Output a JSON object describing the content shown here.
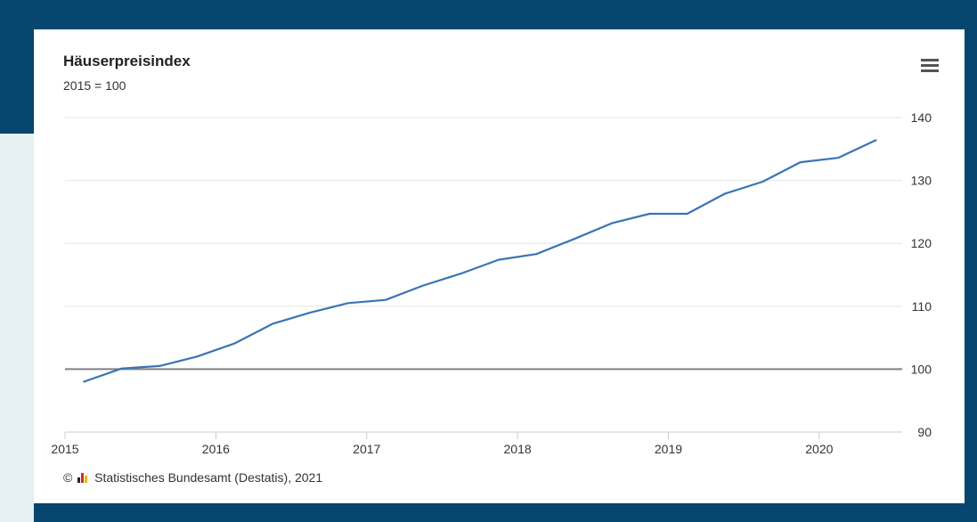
{
  "header": {
    "title": "Häuserpreisindex",
    "subtitle": "2015 = 100"
  },
  "menu": {
    "icon": "hamburger-menu-icon"
  },
  "credits": {
    "copyright_symbol": "©",
    "logo_icon": "destatis-logo-icon",
    "text": "Statistisches Bundesamt (Destatis), 2021"
  },
  "colors": {
    "frame": "#07466f",
    "series_line": "#3a74b4",
    "baseline": "#808080",
    "grid": "#e6e6e6"
  },
  "chart_data": {
    "type": "line",
    "title": "Häuserpreisindex",
    "subtitle": "2015 = 100",
    "xlabel": "",
    "ylabel": "",
    "x_ticks": [
      "2015",
      "2016",
      "2017",
      "2018",
      "2019",
      "2020"
    ],
    "y_ticks": [
      90,
      100,
      110,
      120,
      130,
      140
    ],
    "ylim": [
      90,
      140
    ],
    "xlim": [
      2015.0,
      2020.55
    ],
    "y_axis_position": "right",
    "grid": true,
    "plot_line": {
      "value": 100
    },
    "legend": false,
    "series": [
      {
        "x": [
          2015.125,
          2015.375,
          2015.625,
          2015.875,
          2016.125,
          2016.375,
          2016.625,
          2016.875,
          2017.125,
          2017.375,
          2017.625,
          2017.875,
          2018.125,
          2018.375,
          2018.625,
          2018.875,
          2019.125,
          2019.375,
          2019.625,
          2019.875,
          2020.125,
          2020.375
        ],
        "y": [
          98.0,
          100.1,
          100.5,
          102.0,
          104.1,
          107.2,
          109.0,
          110.5,
          111.0,
          113.3,
          115.2,
          117.4,
          118.3,
          120.7,
          123.2,
          124.7,
          124.7,
          127.9,
          129.8,
          132.9,
          133.6,
          136.4
        ]
      }
    ]
  }
}
